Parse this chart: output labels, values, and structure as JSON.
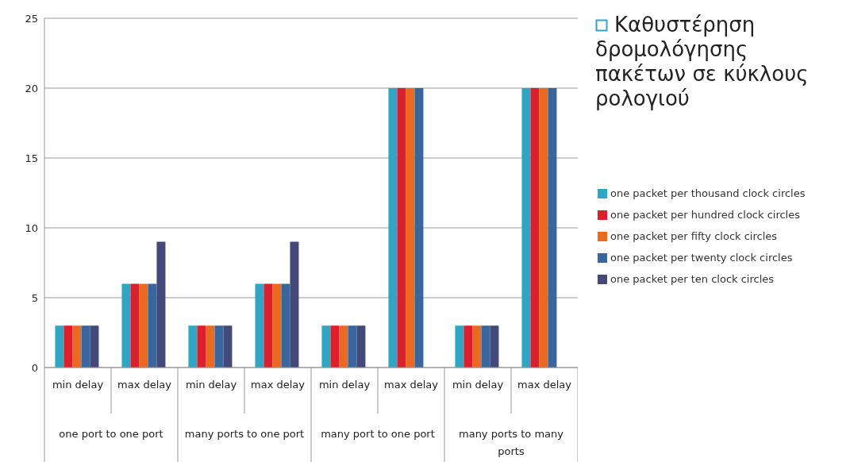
{
  "chart_data": {
    "type": "bar",
    "title": "Καθυστέρηση δρομολόγησης πακέτων σε κύκλους ρολογιού",
    "categories": [
      "min delay",
      "max delay",
      "min delay",
      "max delay",
      "min delay",
      "max delay",
      "min delay",
      "max delay"
    ],
    "annotations": [
      "one port to one port",
      "many ports to one port",
      "many port to one port",
      "many ports to many ports"
    ],
    "series": [
      {
        "name": "one packet per thousand clock circles",
        "color": "#2ea6c4",
        "values": [
          3,
          6,
          3,
          6,
          3,
          20,
          3,
          20
        ]
      },
      {
        "name": "one packet per hundred clock circles",
        "color": "#d9202c",
        "values": [
          3,
          6,
          3,
          6,
          3,
          20,
          3,
          20
        ]
      },
      {
        "name": "one packet per fifty clock circles",
        "color": "#ec6a1f",
        "values": [
          3,
          6,
          3,
          6,
          3,
          20,
          3,
          20
        ]
      },
      {
        "name": "one packet per twenty clock circles",
        "color": "#3a66a0",
        "values": [
          3,
          6,
          3,
          6,
          3,
          20,
          3,
          20
        ]
      },
      {
        "name": "one packet per ten clock circles",
        "color": "#434a7a",
        "values": [
          3,
          9,
          3,
          9,
          3,
          null,
          3,
          null
        ]
      }
    ],
    "ylim": [
      0,
      25
    ],
    "yticks": [
      0,
      5,
      10,
      15,
      20,
      25
    ],
    "grid": "y",
    "legend": "right"
  }
}
